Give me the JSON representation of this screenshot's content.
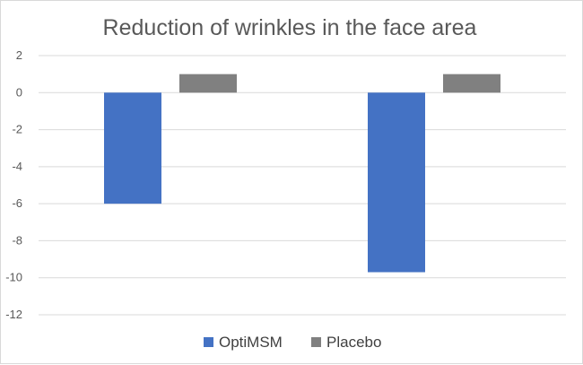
{
  "chart_data": {
    "type": "bar",
    "title": "Reduction of wrinkles in the face area",
    "xlabel": "",
    "ylabel": "",
    "categories": [
      "",
      ""
    ],
    "series": [
      {
        "name": "OptiMSM",
        "values": [
          -6,
          -9.7
        ],
        "color": "#4472c4"
      },
      {
        "name": "Placebo",
        "values": [
          1,
          1
        ],
        "color": "#808080"
      }
    ],
    "ylim": [
      -12,
      2
    ],
    "yticks": [
      2,
      0,
      -2,
      -4,
      -6,
      -8,
      -10,
      -12
    ],
    "grid": true,
    "legend_position": "bottom"
  }
}
